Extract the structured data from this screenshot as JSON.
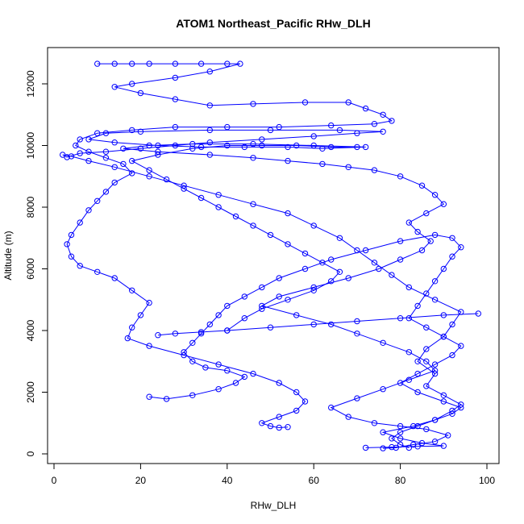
{
  "chart_data": {
    "type": "line",
    "title": "ATOM1 Northeast_Pacific RHw_DLH",
    "xlabel": "RHw_DLH",
    "ylabel": "Altitude (m)",
    "xlim": [
      0,
      100
    ],
    "ylim": [
      0,
      12000
    ],
    "x_ticks": [
      "0",
      "20",
      "40",
      "60",
      "80",
      "100"
    ],
    "y_ticks": [
      "0",
      "2000",
      "4000",
      "6000",
      "8000",
      "10000",
      "12000"
    ],
    "markers": "open-circle",
    "grid": false,
    "color": "#0000ff",
    "series": [
      {
        "points": [
          [
            72,
            200
          ],
          [
            78,
            220
          ],
          [
            84,
            240
          ],
          [
            90,
            260
          ],
          [
            85,
            350
          ],
          [
            80,
            500
          ],
          [
            76,
            700
          ],
          [
            83,
            900
          ],
          [
            88,
            1100
          ],
          [
            92,
            1400
          ],
          [
            94,
            1600
          ],
          [
            90,
            1900
          ],
          [
            86,
            2200
          ],
          [
            88,
            2600
          ],
          [
            84,
            3000
          ],
          [
            86,
            3400
          ],
          [
            90,
            3800
          ],
          [
            92,
            4200
          ],
          [
            94,
            4600
          ],
          [
            88,
            5000
          ],
          [
            82,
            5400
          ],
          [
            78,
            5800
          ],
          [
            74,
            6200
          ],
          [
            70,
            6600
          ],
          [
            66,
            7000
          ],
          [
            60,
            7400
          ],
          [
            54,
            7800
          ],
          [
            46,
            8100
          ],
          [
            38,
            8400
          ],
          [
            30,
            8700
          ],
          [
            22,
            9000
          ],
          [
            14,
            9300
          ],
          [
            8,
            9500
          ],
          [
            4,
            9650
          ],
          [
            2,
            9700
          ],
          [
            3,
            9620
          ],
          [
            6,
            9750
          ],
          [
            12,
            9800
          ],
          [
            20,
            9900
          ],
          [
            28,
            10000
          ],
          [
            36,
            10100
          ],
          [
            48,
            10200
          ],
          [
            60,
            10300
          ],
          [
            70,
            10400
          ],
          [
            76,
            10450
          ],
          [
            66,
            10500
          ],
          [
            50,
            10500
          ],
          [
            36,
            10500
          ],
          [
            20,
            10450
          ],
          [
            12,
            10400
          ],
          [
            8,
            10200
          ],
          [
            14,
            10100
          ],
          [
            24,
            10000
          ],
          [
            34,
            9950
          ],
          [
            44,
            9950
          ],
          [
            54,
            9950
          ],
          [
            62,
            9900
          ],
          [
            72,
            9950
          ],
          [
            60,
            10000
          ],
          [
            46,
            10050
          ],
          [
            32,
            10050
          ],
          [
            22,
            10000
          ],
          [
            16,
            9900
          ],
          [
            24,
            9800
          ],
          [
            36,
            9700
          ],
          [
            46,
            9600
          ],
          [
            54,
            9500
          ],
          [
            62,
            9400
          ],
          [
            68,
            9300
          ],
          [
            74,
            9200
          ],
          [
            80,
            9000
          ],
          [
            85,
            8700
          ],
          [
            88,
            8400
          ],
          [
            90,
            8100
          ],
          [
            86,
            7800
          ],
          [
            82,
            7500
          ],
          [
            84,
            7200
          ],
          [
            87,
            6900
          ],
          [
            85,
            6600
          ],
          [
            80,
            6300
          ],
          [
            75,
            6000
          ],
          [
            68,
            5700
          ],
          [
            60,
            5400
          ],
          [
            52,
            5100
          ],
          [
            48,
            4800
          ],
          [
            56,
            4500
          ],
          [
            64,
            4200
          ],
          [
            70,
            3900
          ],
          [
            76,
            3600
          ],
          [
            82,
            3300
          ],
          [
            86,
            3000
          ],
          [
            88,
            2700
          ],
          [
            82,
            2400
          ],
          [
            76,
            2100
          ],
          [
            70,
            1800
          ],
          [
            64,
            1500
          ],
          [
            68,
            1200
          ],
          [
            74,
            1000
          ],
          [
            80,
            900
          ],
          [
            86,
            800
          ],
          [
            91,
            600
          ],
          [
            88,
            400
          ],
          [
            83,
            300
          ],
          [
            79,
            200
          ],
          [
            76,
            180
          ]
        ]
      },
      {
        "points": [
          [
            10,
            12650
          ],
          [
            14,
            12650
          ],
          [
            18,
            12650
          ],
          [
            22,
            12650
          ],
          [
            28,
            12650
          ],
          [
            34,
            12650
          ],
          [
            40,
            12650
          ],
          [
            43,
            12650
          ],
          [
            36,
            12400
          ],
          [
            28,
            12200
          ],
          [
            18,
            12000
          ],
          [
            14,
            11900
          ],
          [
            20,
            11700
          ],
          [
            28,
            11500
          ],
          [
            36,
            11300
          ],
          [
            46,
            11350
          ],
          [
            58,
            11400
          ],
          [
            68,
            11400
          ],
          [
            72,
            11200
          ],
          [
            76,
            11000
          ],
          [
            78,
            10800
          ],
          [
            74,
            10700
          ],
          [
            64,
            10650
          ],
          [
            52,
            10600
          ],
          [
            40,
            10600
          ],
          [
            28,
            10600
          ],
          [
            18,
            10500
          ],
          [
            10,
            10400
          ],
          [
            6,
            10200
          ],
          [
            5,
            10000
          ],
          [
            8,
            9800
          ],
          [
            12,
            9600
          ],
          [
            16,
            9400
          ],
          [
            18,
            9100
          ],
          [
            14,
            8800
          ],
          [
            12,
            8500
          ],
          [
            10,
            8200
          ],
          [
            8,
            7900
          ],
          [
            6,
            7500
          ],
          [
            4,
            7100
          ],
          [
            3,
            6800
          ],
          [
            4,
            6400
          ],
          [
            6,
            6100
          ],
          [
            10,
            5900
          ],
          [
            14,
            5700
          ],
          [
            18,
            5300
          ],
          [
            22,
            4900
          ],
          [
            20,
            4500
          ],
          [
            18,
            4100
          ],
          [
            17,
            3750
          ],
          [
            22,
            3500
          ],
          [
            30,
            3200
          ],
          [
            38,
            2900
          ],
          [
            46,
            2600
          ],
          [
            52,
            2300
          ],
          [
            56,
            2000
          ],
          [
            58,
            1700
          ],
          [
            56,
            1400
          ],
          [
            52,
            1200
          ],
          [
            48,
            1000
          ],
          [
            50,
            900
          ],
          [
            52,
            850
          ],
          [
            54,
            870
          ]
        ]
      },
      {
        "points": [
          [
            22,
            1850
          ],
          [
            26,
            1780
          ],
          [
            32,
            1900
          ],
          [
            38,
            2100
          ],
          [
            42,
            2300
          ],
          [
            44,
            2500
          ],
          [
            40,
            2700
          ],
          [
            35,
            2800
          ],
          [
            32,
            3000
          ],
          [
            30,
            3300
          ],
          [
            32,
            3600
          ],
          [
            34,
            3900
          ],
          [
            36,
            4200
          ],
          [
            38,
            4500
          ],
          [
            40,
            4800
          ],
          [
            44,
            5100
          ],
          [
            48,
            5400
          ],
          [
            52,
            5700
          ],
          [
            58,
            6000
          ],
          [
            64,
            6300
          ],
          [
            72,
            6600
          ],
          [
            80,
            6900
          ],
          [
            88,
            7100
          ],
          [
            92,
            7000
          ],
          [
            94,
            6700
          ],
          [
            92,
            6400
          ],
          [
            90,
            6000
          ],
          [
            88,
            5600
          ],
          [
            86,
            5200
          ],
          [
            84,
            4800
          ],
          [
            82,
            4400
          ],
          [
            86,
            4100
          ],
          [
            90,
            3800
          ],
          [
            94,
            3500
          ],
          [
            92,
            3200
          ],
          [
            88,
            2900
          ],
          [
            84,
            2600
          ],
          [
            80,
            2300
          ],
          [
            84,
            2000
          ],
          [
            90,
            1700
          ],
          [
            94,
            1500
          ],
          [
            92,
            1300
          ],
          [
            88,
            1100
          ],
          [
            84,
            900
          ],
          [
            80,
            700
          ],
          [
            78,
            500
          ],
          [
            80,
            300
          ],
          [
            82,
            200
          ]
        ]
      },
      {
        "points": [
          [
            40,
            4000
          ],
          [
            44,
            4400
          ],
          [
            48,
            4700
          ],
          [
            54,
            5000
          ],
          [
            60,
            5300
          ],
          [
            64,
            5600
          ],
          [
            66,
            5900
          ],
          [
            62,
            6200
          ],
          [
            58,
            6500
          ],
          [
            54,
            6800
          ],
          [
            50,
            7100
          ],
          [
            46,
            7400
          ],
          [
            42,
            7700
          ],
          [
            38,
            8000
          ],
          [
            34,
            8300
          ],
          [
            30,
            8600
          ],
          [
            26,
            8900
          ],
          [
            22,
            9200
          ],
          [
            18,
            9500
          ],
          [
            24,
            9700
          ],
          [
            32,
            9900
          ],
          [
            40,
            10000
          ],
          [
            48,
            10000
          ],
          [
            56,
            10000
          ],
          [
            64,
            9950
          ],
          [
            70,
            9950
          ]
        ]
      },
      {
        "points": [
          [
            98,
            4550
          ],
          [
            90,
            4500
          ],
          [
            80,
            4400
          ],
          [
            70,
            4300
          ],
          [
            60,
            4200
          ],
          [
            50,
            4100
          ],
          [
            40,
            4000
          ],
          [
            34,
            3950
          ],
          [
            28,
            3900
          ],
          [
            24,
            3850
          ]
        ]
      }
    ]
  }
}
